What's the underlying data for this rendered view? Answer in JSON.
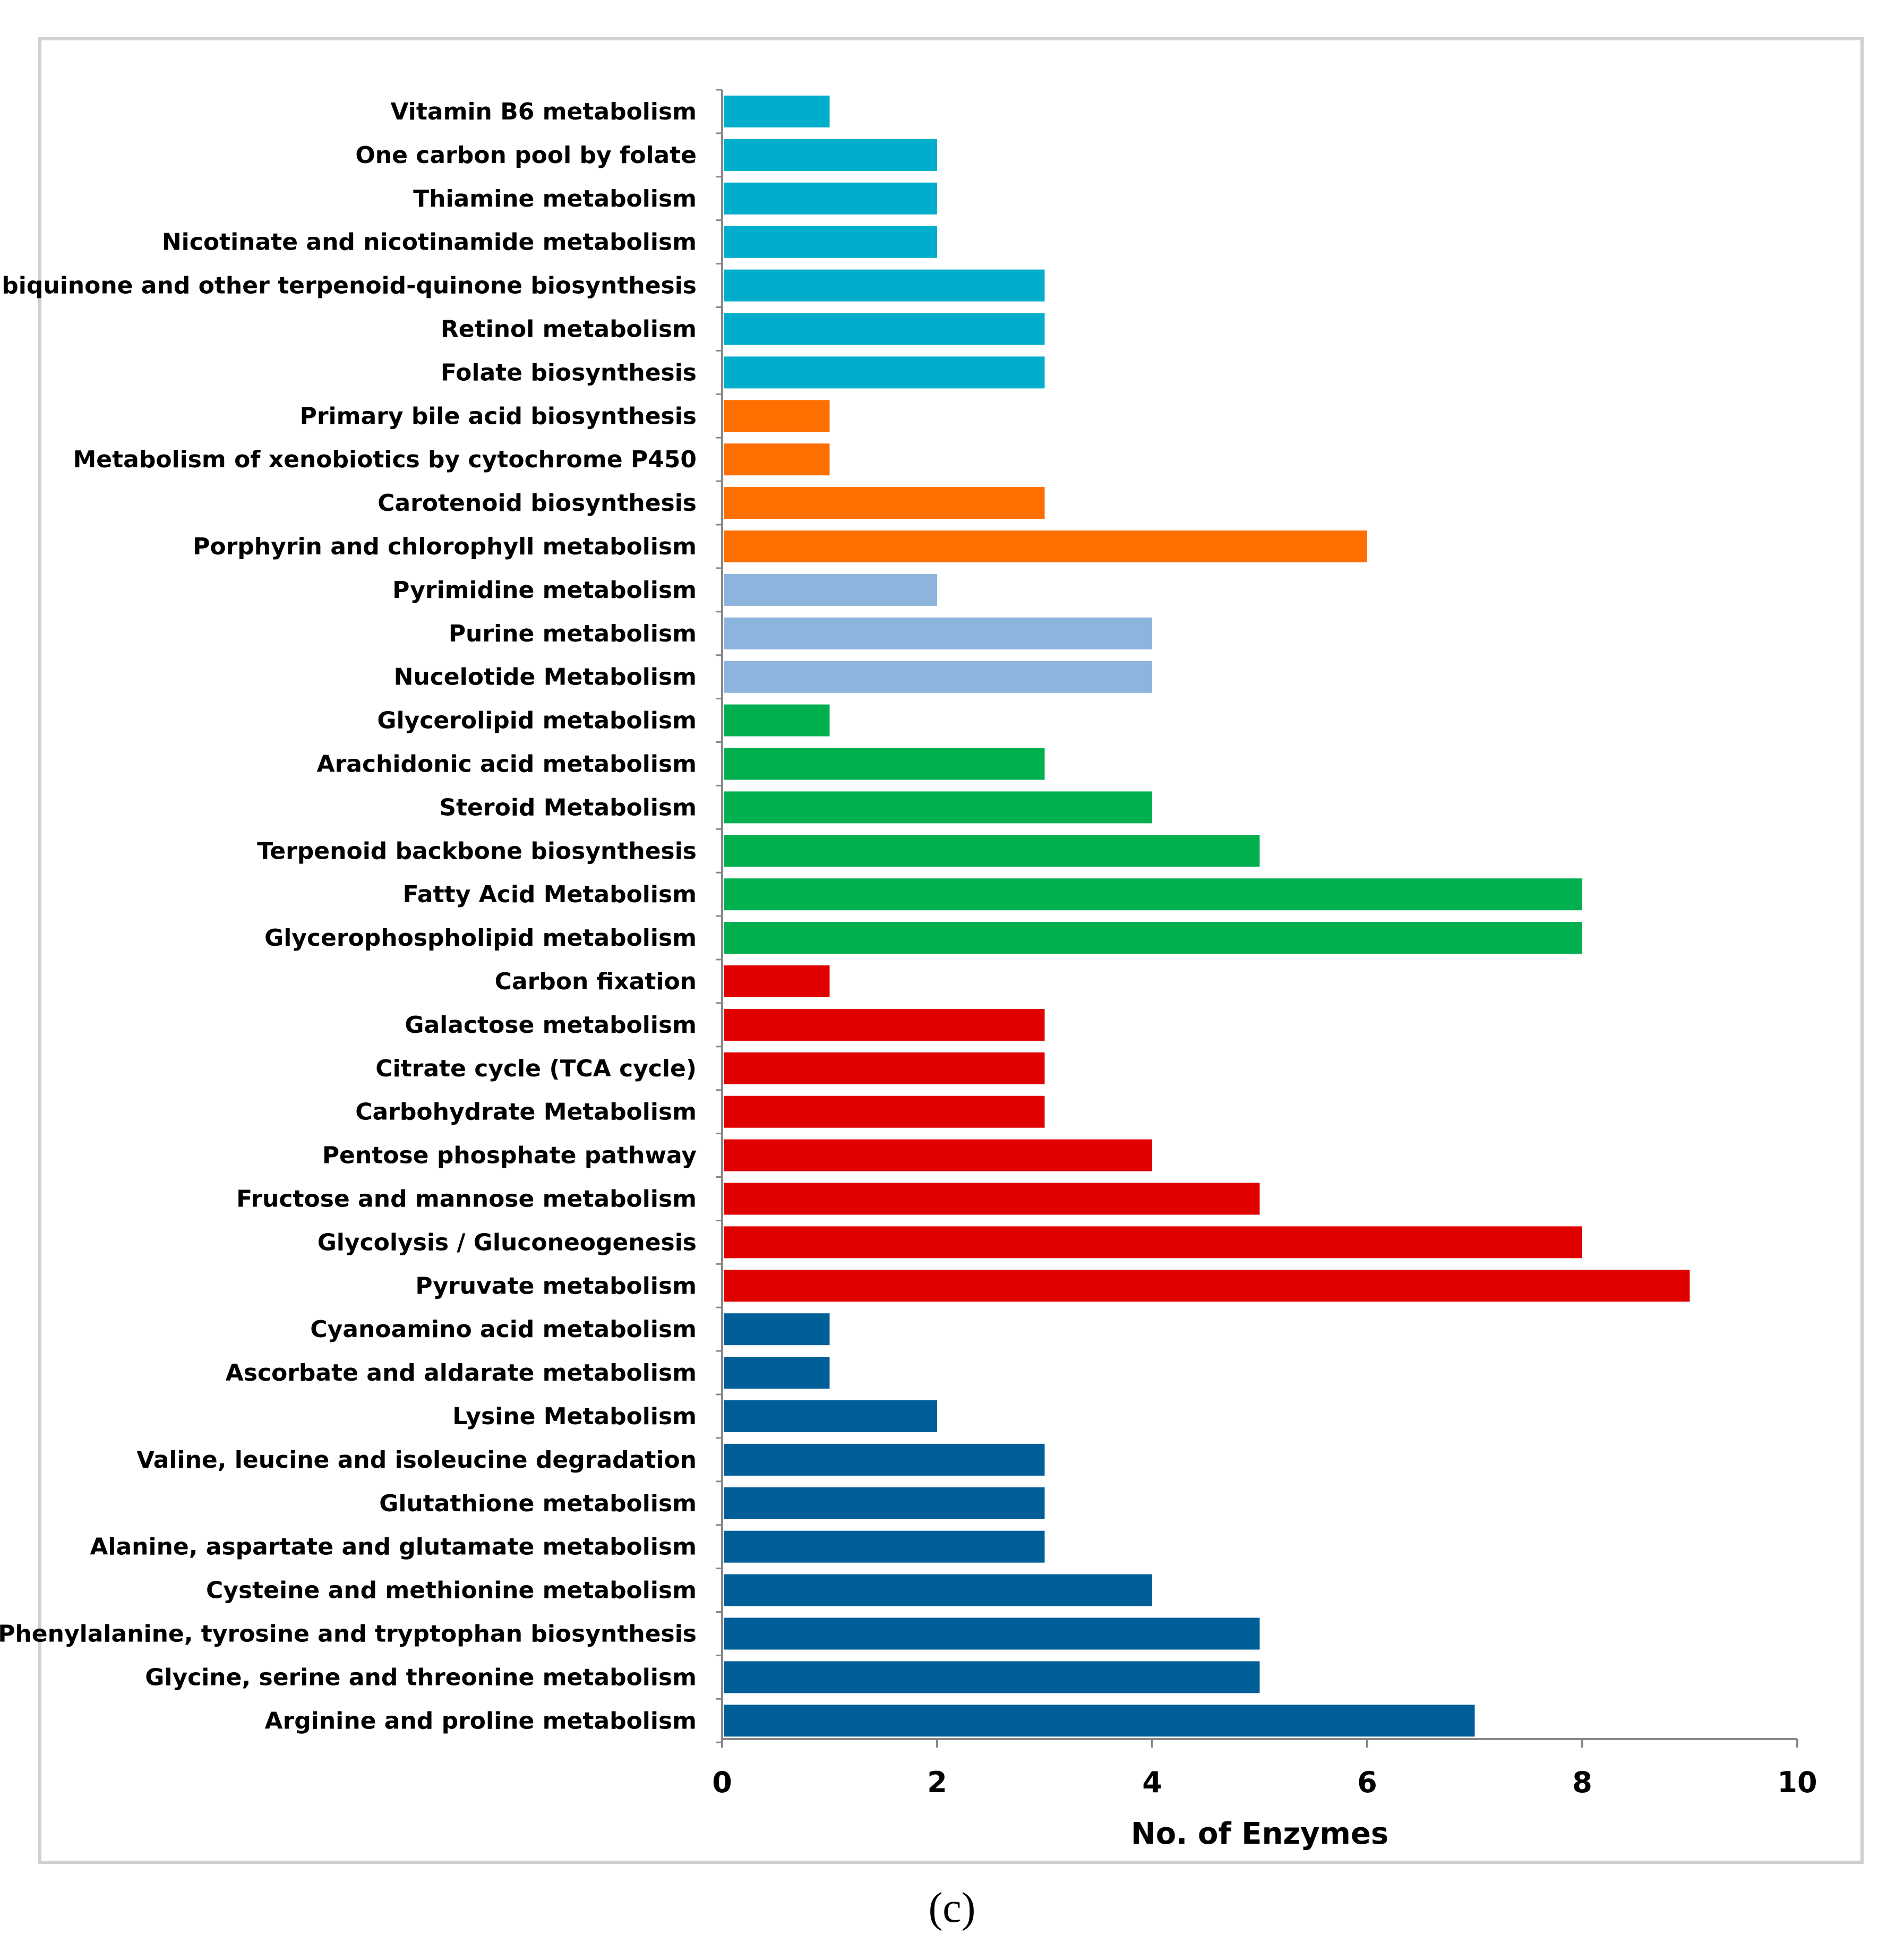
{
  "chart_data": {
    "type": "bar",
    "orientation": "horizontal",
    "xlabel": "No. of Enzymes",
    "ylabel": "",
    "xlim": [
      0,
      10
    ],
    "xticks": [
      0,
      2,
      4,
      6,
      8,
      10
    ],
    "grid": false,
    "legend": "none",
    "panel_label": "(c)",
    "bars": [
      {
        "label": "Vitamin B6 metabolism",
        "value": 1,
        "color": "#00AECB"
      },
      {
        "label": "One carbon pool by folate",
        "value": 2,
        "color": "#00AECB"
      },
      {
        "label": "Thiamine metabolism",
        "value": 2,
        "color": "#00AECB"
      },
      {
        "label": "Nicotinate and nicotinamide metabolism",
        "value": 2,
        "color": "#00AECB"
      },
      {
        "label": "Ubiquinone and other terpenoid-quinone biosynthesis",
        "value": 3,
        "color": "#00AECB"
      },
      {
        "label": "Retinol metabolism",
        "value": 3,
        "color": "#00AECB"
      },
      {
        "label": "Folate biosynthesis",
        "value": 3,
        "color": "#00AECB"
      },
      {
        "label": "Primary bile acid biosynthesis",
        "value": 1,
        "color": "#FF6F00"
      },
      {
        "label": "Metabolism of xenobiotics by cytochrome P450",
        "value": 1,
        "color": "#FF6F00"
      },
      {
        "label": "Carotenoid biosynthesis",
        "value": 3,
        "color": "#FF6F00"
      },
      {
        "label": "Porphyrin and chlorophyll metabolism",
        "value": 6,
        "color": "#FF6F00"
      },
      {
        "label": "Pyrimidine metabolism",
        "value": 2,
        "color": "#8DB4DC"
      },
      {
        "label": "Purine metabolism",
        "value": 4,
        "color": "#8DB4DC"
      },
      {
        "label": "Nucelotide Metabolism",
        "value": 4,
        "color": "#8DB4DC"
      },
      {
        "label": "Glycerolipid metabolism",
        "value": 1,
        "color": "#00B04F"
      },
      {
        "label": "Arachidonic acid metabolism",
        "value": 3,
        "color": "#00B04F"
      },
      {
        "label": "Steroid Metabolism",
        "value": 4,
        "color": "#00B04F"
      },
      {
        "label": "Terpenoid backbone biosynthesis",
        "value": 5,
        "color": "#00B04F"
      },
      {
        "label": "Fatty Acid Metabolism",
        "value": 8,
        "color": "#00B04F"
      },
      {
        "label": "Glycerophospholipid metabolism",
        "value": 8,
        "color": "#00B04F"
      },
      {
        "label": "Carbon fixation",
        "value": 1,
        "color": "#E00000"
      },
      {
        "label": "Galactose metabolism",
        "value": 3,
        "color": "#E00000"
      },
      {
        "label": "Citrate cycle (TCA cycle)",
        "value": 3,
        "color": "#E00000"
      },
      {
        "label": "Carbohydrate Metabolism",
        "value": 3,
        "color": "#E00000"
      },
      {
        "label": "Pentose phosphate pathway",
        "value": 4,
        "color": "#E00000"
      },
      {
        "label": "Fructose and mannose metabolism",
        "value": 5,
        "color": "#E00000"
      },
      {
        "label": "Glycolysis / Gluconeogenesis",
        "value": 8,
        "color": "#E00000"
      },
      {
        "label": "Pyruvate metabolism",
        "value": 9,
        "color": "#E00000"
      },
      {
        "label": "Cyanoamino acid metabolism",
        "value": 1,
        "color": "#005F99"
      },
      {
        "label": "Ascorbate and aldarate metabolism",
        "value": 1,
        "color": "#005F99"
      },
      {
        "label": "Lysine Metabolism",
        "value": 2,
        "color": "#005F99"
      },
      {
        "label": "Valine, leucine and isoleucine degradation",
        "value": 3,
        "color": "#005F99"
      },
      {
        "label": "Glutathione metabolism",
        "value": 3,
        "color": "#005F99"
      },
      {
        "label": "Alanine, aspartate and glutamate metabolism",
        "value": 3,
        "color": "#005F99"
      },
      {
        "label": "Cysteine and methionine metabolism",
        "value": 4,
        "color": "#005F99"
      },
      {
        "label": "Phenylalanine, tyrosine and tryptophan biosynthesis",
        "value": 5,
        "color": "#005F99"
      },
      {
        "label": "Glycine, serine and threonine metabolism",
        "value": 5,
        "color": "#005F99"
      },
      {
        "label": "Arginine and proline metabolism",
        "value": 7,
        "color": "#005F99"
      }
    ]
  }
}
